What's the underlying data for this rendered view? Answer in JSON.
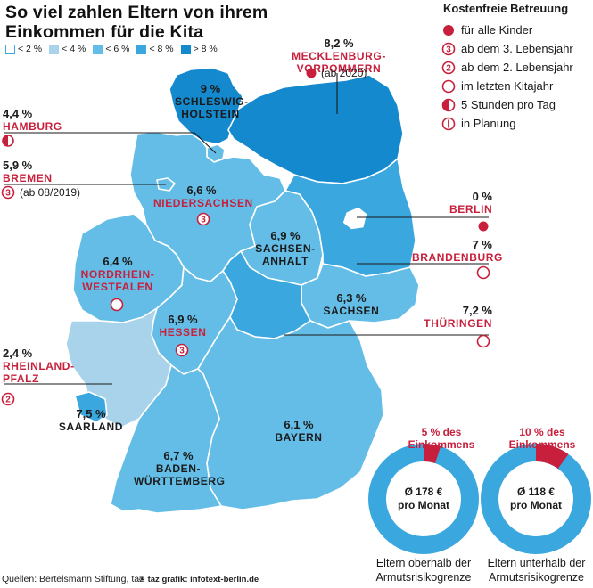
{
  "title": {
    "line1": "So viel zahlen Eltern von ihrem",
    "line2": "Einkommen für die Kita"
  },
  "scale": [
    {
      "label": "< 2 %",
      "color": "#ffffff"
    },
    {
      "label": "< 4 %",
      "color": "#a9d3ea"
    },
    {
      "label": "< 6 %",
      "color": "#64bde6"
    },
    {
      "label": "< 8 %",
      "color": "#3aa7df"
    },
    {
      "label": "> 8 %",
      "color": "#1589cd"
    }
  ],
  "legend": {
    "title": "Kostenfreie Betreuung",
    "items": [
      {
        "icon": "filled-dot-icon",
        "label": "für alle Kinder"
      },
      {
        "icon": "circle-3-icon",
        "label": "ab dem 3. Lebensjahr"
      },
      {
        "icon": "circle-2-icon",
        "label": "ab dem 2. Lebensjahr"
      },
      {
        "icon": "empty-circle-icon",
        "label": "im letzten Kitajahr"
      },
      {
        "icon": "half-circle-icon",
        "label": "5 Stunden pro Tag"
      },
      {
        "icon": "circle-bar-icon",
        "label": "in Planung"
      }
    ]
  },
  "states": {
    "mv": {
      "pct": "8,2 %",
      "name1": "MECKLENBURG-",
      "name2": "VORPOMMERN",
      "note": "(ab 2020)"
    },
    "sh": {
      "pct": "9 %",
      "name1": "SCHLESWIG-",
      "name2": "HOLSTEIN"
    },
    "hh": {
      "pct": "4,4 %",
      "name": "HAMBURG"
    },
    "hb": {
      "pct": "5,9 %",
      "name": "BREMEN",
      "note": "(ab 08/2019)"
    },
    "ni": {
      "pct": "6,6 %",
      "name": "NIEDERSACHSEN"
    },
    "be": {
      "pct": "0 %",
      "name": "BERLIN"
    },
    "bb": {
      "pct": "7 %",
      "name": "BRANDENBURG"
    },
    "st": {
      "pct": "6,9 %",
      "name1": "SACHSEN-",
      "name2": "ANHALT"
    },
    "nw": {
      "pct": "6,4 %",
      "name1": "NORDRHEIN-",
      "name2": "WESTFALEN"
    },
    "sn": {
      "pct": "6,3 %",
      "name": "SACHSEN"
    },
    "th": {
      "pct": "7,2 %",
      "name": "THÜRINGEN"
    },
    "he": {
      "pct": "6,9 %",
      "name": "HESSEN"
    },
    "rp": {
      "pct": "2,4 %",
      "name1": "RHEINLAND-",
      "name2": "PFALZ"
    },
    "sl": {
      "pct": "7,5 %",
      "name": "SAARLAND"
    },
    "by": {
      "pct": "6,1 %",
      "name": "BAYERN"
    },
    "bw": {
      "pct": "6,7 %",
      "name1": "BADEN-",
      "name2": "WÜRTTEMBERG"
    }
  },
  "donuts": [
    {
      "top1": "5 % des",
      "top2": "Einkommens",
      "center1": "Ø 178 €",
      "center2": "pro Monat",
      "fraction": 0.05,
      "bottom1": "Eltern oberhalb der",
      "bottom2": "Armutsrisikogrenze"
    },
    {
      "top1": "10 % des",
      "top2": "Einkommens",
      "center1": "Ø 118 €",
      "center2": "pro Monat",
      "fraction": 0.1,
      "bottom1": "Eltern unterhalb der",
      "bottom2": "Armutsrisikogrenze"
    }
  ],
  "footer": {
    "sources": "Quellen: Bertelsmann Stiftung, taz",
    "credit": "taz grafik: infotext-berlin.de"
  },
  "colors": {
    "accent": "#c8203c",
    "ring": "#3aa7df"
  }
}
